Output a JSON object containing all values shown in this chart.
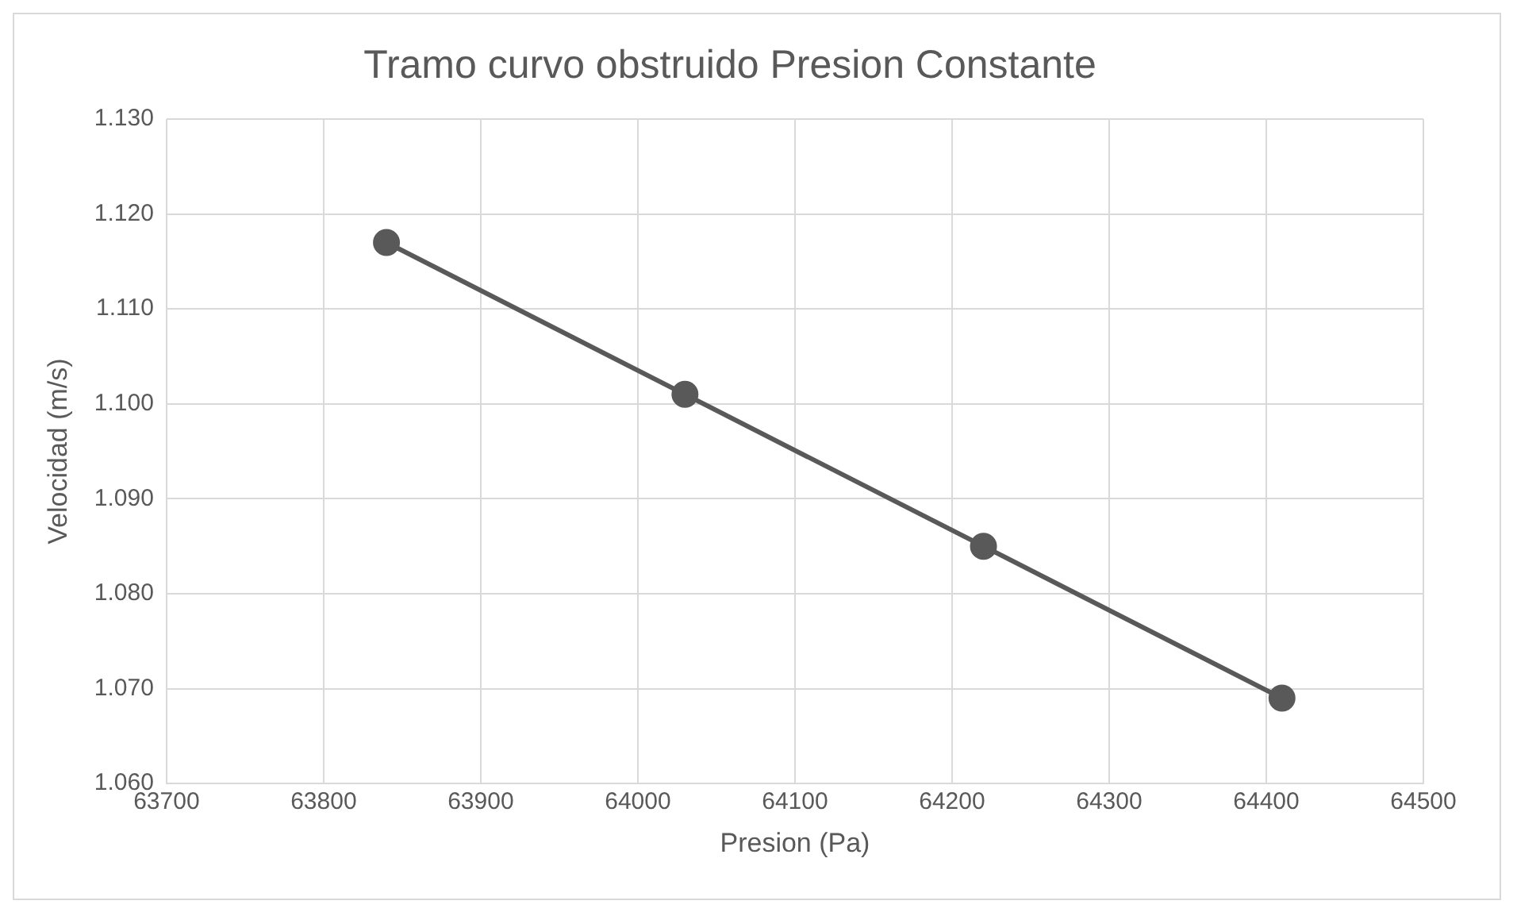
{
  "chart_data": {
    "type": "line",
    "title": "Tramo curvo obstruido Presion Constante",
    "xlabel": "Presion (Pa)",
    "ylabel": "Velocidad (m/s)",
    "x": [
      63840,
      64030,
      64220,
      64410
    ],
    "series": [
      {
        "color": "#595959",
        "values": [
          1.117,
          1.101,
          1.085,
          1.069
        ]
      }
    ],
    "xlim": [
      63700,
      64500
    ],
    "xticks": [
      63700,
      63800,
      63900,
      64000,
      64100,
      64200,
      64300,
      64400,
      64500
    ],
    "ylim": [
      1.06,
      1.13
    ],
    "yticks": [
      {
        "value": 1.06,
        "label": "1.060"
      },
      {
        "value": 1.07,
        "label": "1.070"
      },
      {
        "value": 1.08,
        "label": "1.080"
      },
      {
        "value": 1.09,
        "label": "1.090"
      },
      {
        "value": 1.1,
        "label": "1.100"
      },
      {
        "value": 1.11,
        "label": "1.110"
      },
      {
        "value": 1.12,
        "label": "1.120"
      },
      {
        "value": 1.13,
        "label": "1.130"
      }
    ],
    "grid": true,
    "legend": false,
    "marker": "circle",
    "line_style": "solid"
  }
}
